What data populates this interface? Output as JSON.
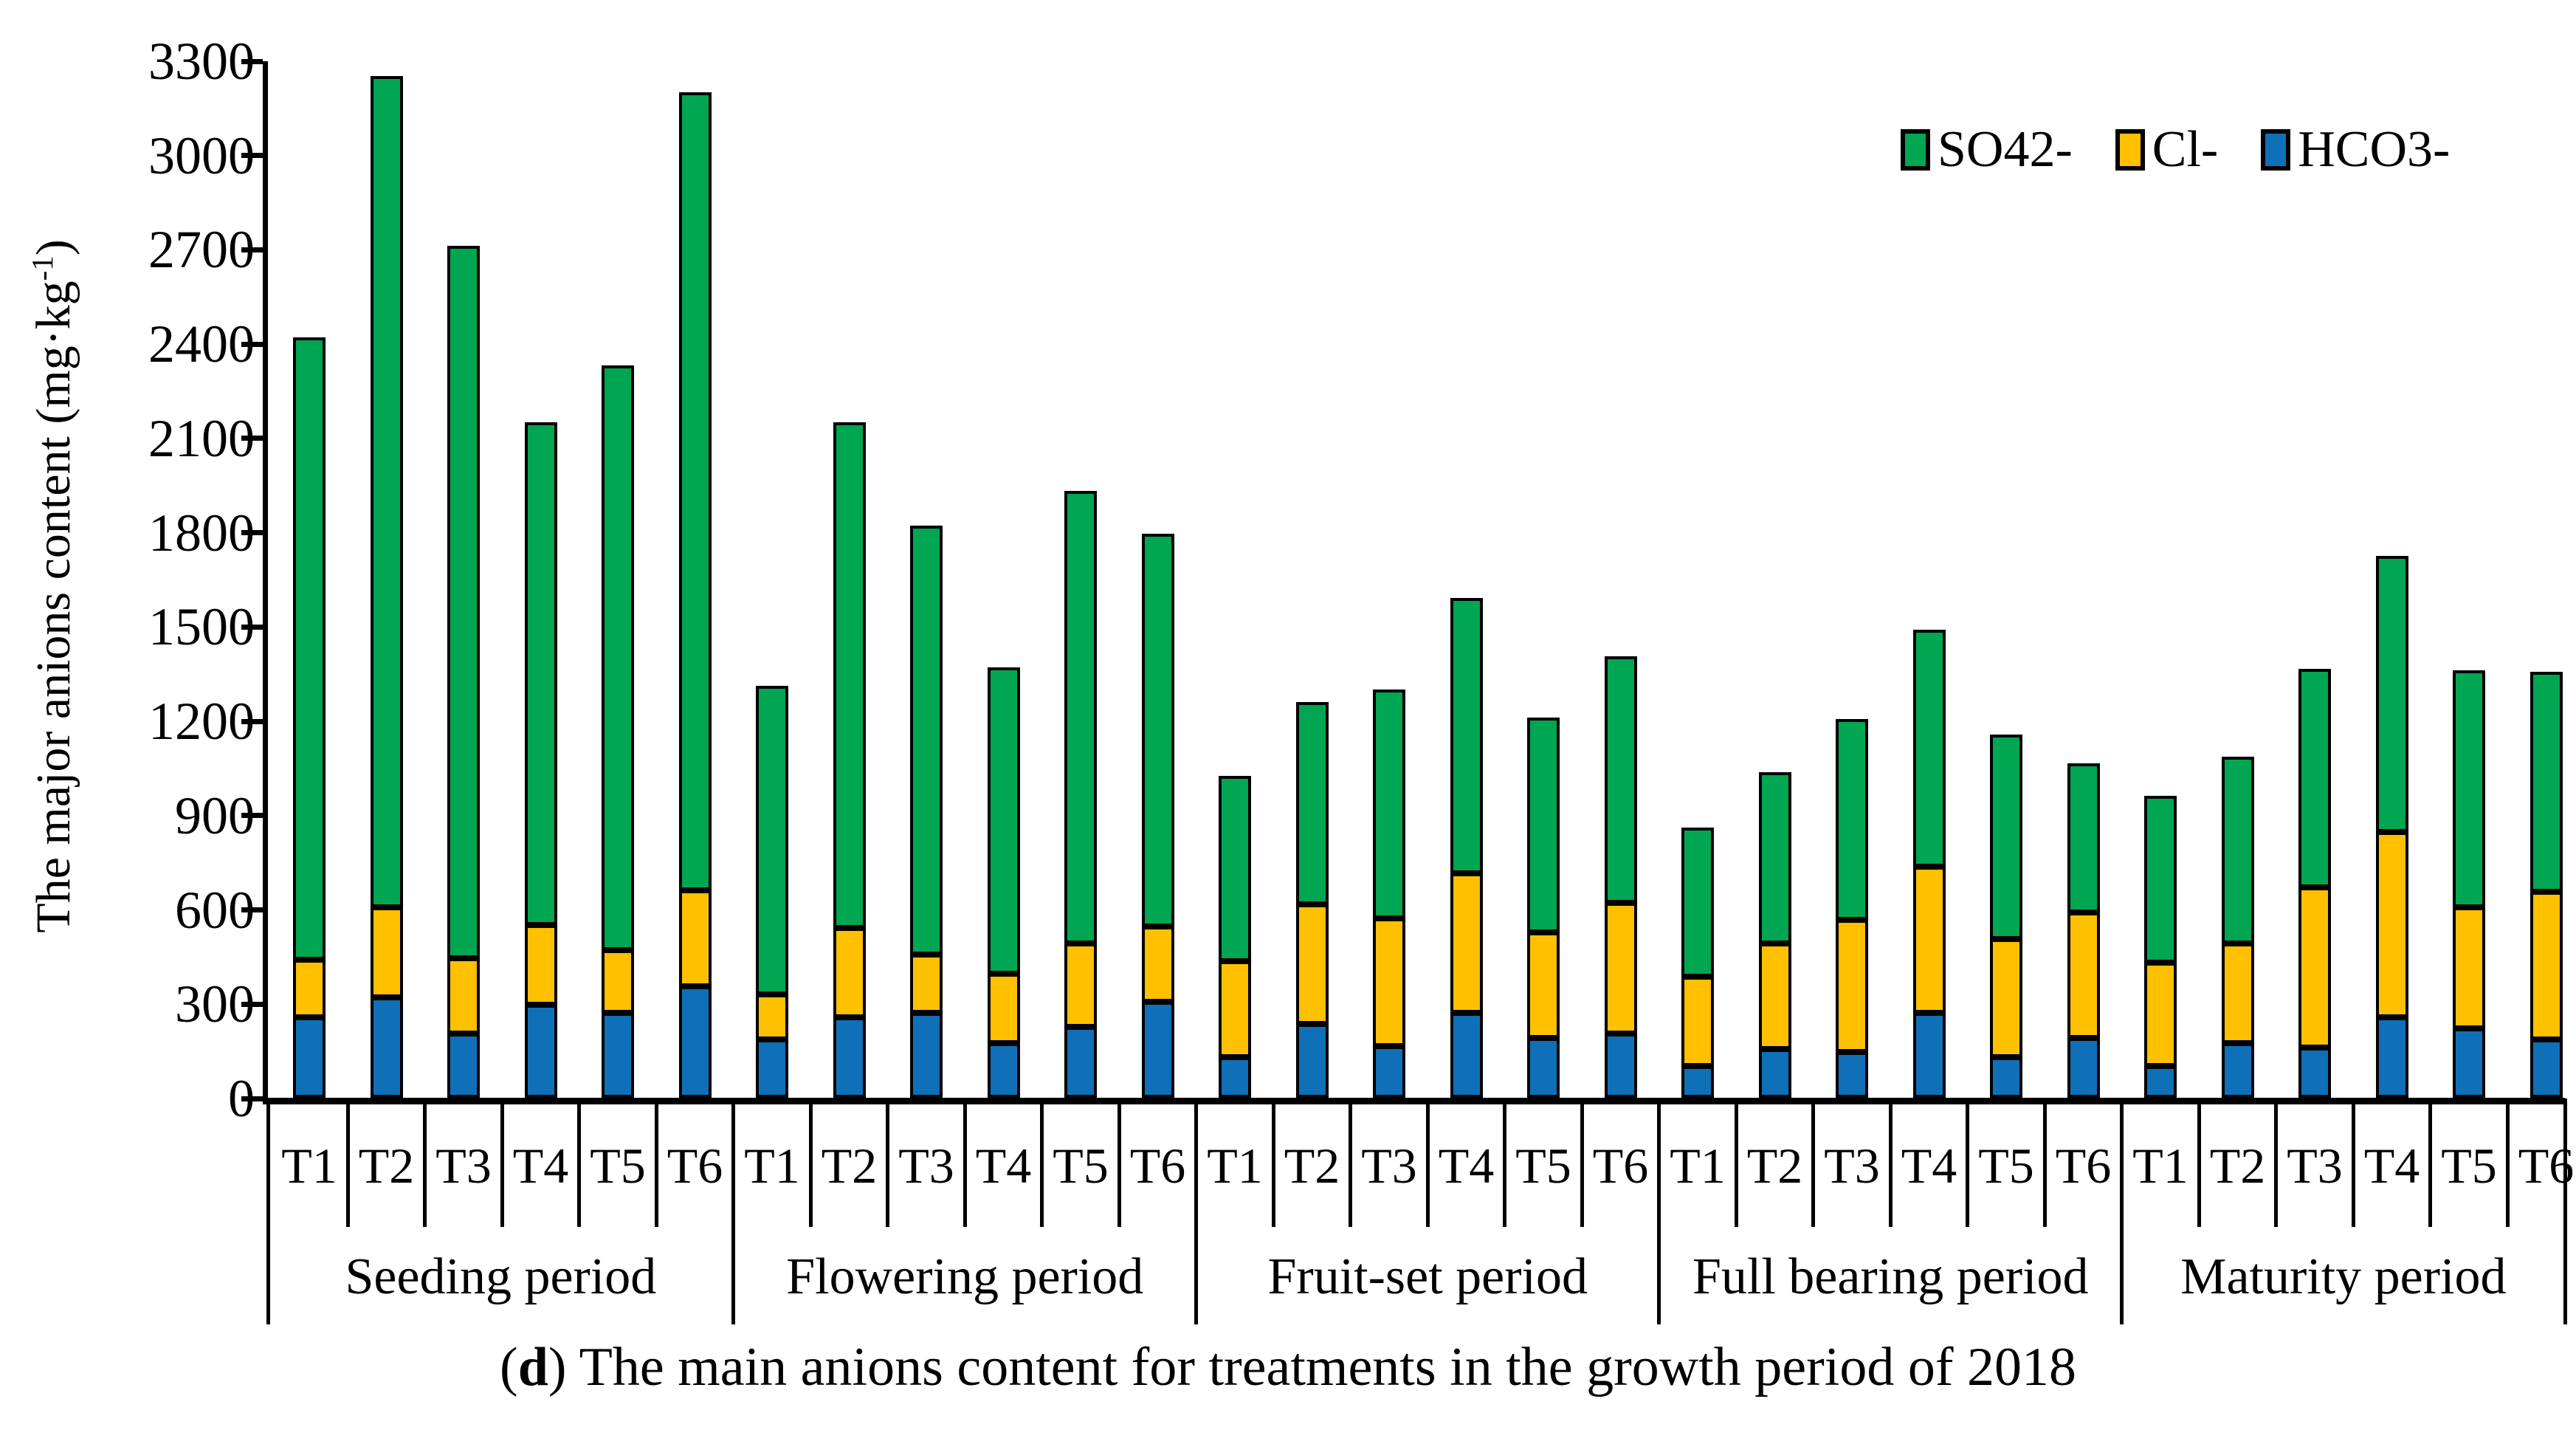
{
  "figure": {
    "y_axis_title_main": "The major anions content (mg·kg",
    "y_axis_title_sup": "-1",
    "y_axis_title_close": ")",
    "caption_open": "(",
    "caption_bold": "d",
    "caption_rest": ") The main anions content for treatments in the growth period of 2018"
  },
  "legend": {
    "position": "top-right",
    "items": [
      {
        "label": "SO42-",
        "color": "#00A651"
      },
      {
        "label": "Cl-",
        "color": "#FFC000"
      },
      {
        "label": "HCO3-",
        "color": "#0F70B7"
      }
    ]
  },
  "chart_data": {
    "type": "bar",
    "stacked": true,
    "title": "",
    "xlabel": "",
    "ylabel": "The major anions content (mg·kg-1)",
    "ylim": [
      0,
      3300
    ],
    "ytick_step": 300,
    "y_ticks": [
      0,
      300,
      600,
      900,
      1200,
      1500,
      1800,
      2100,
      2400,
      2700,
      3000,
      3300
    ],
    "grid": false,
    "treatments": [
      "T1",
      "T2",
      "T3",
      "T4",
      "T5",
      "T6"
    ],
    "series_order_bottom_to_top": [
      "HCO3-",
      "Cl-",
      "SO42-"
    ],
    "series_colors": {
      "HCO3-": "#0F70B7",
      "Cl-": "#FFC000",
      "SO42-": "#00A651"
    },
    "groups": [
      {
        "label": "Seeding period",
        "values": {
          "HCO3-": [
            255,
            320,
            205,
            295,
            270,
            355
          ],
          "Cl-": [
            185,
            285,
            240,
            255,
            200,
            305
          ],
          "SO42-": [
            1980,
            2645,
            2265,
            1600,
            1860,
            2540
          ]
        }
      },
      {
        "label": "Flowering period",
        "values": {
          "HCO3-": [
            185,
            255,
            270,
            175,
            225,
            305
          ],
          "Cl-": [
            145,
            285,
            185,
            220,
            265,
            240
          ],
          "SO42-": [
            980,
            1610,
            1365,
            975,
            1440,
            1250
          ]
        }
      },
      {
        "label": "Fruit-set period",
        "values": {
          "HCO3-": [
            130,
            235,
            165,
            270,
            190,
            205
          ],
          "Cl-": [
            305,
            380,
            405,
            445,
            335,
            415
          ],
          "SO42-": [
            590,
            645,
            730,
            875,
            685,
            785
          ]
        }
      },
      {
        "label": "Full bearing period",
        "values": {
          "HCO3-": [
            100,
            155,
            145,
            270,
            130,
            190
          ],
          "Cl-": [
            285,
            335,
            420,
            465,
            375,
            400
          ],
          "SO42-": [
            475,
            545,
            640,
            755,
            650,
            475
          ]
        }
      },
      {
        "label": "Maturity period",
        "values": {
          "HCO3-": [
            100,
            175,
            160,
            255,
            220,
            185
          ],
          "Cl-": [
            330,
            315,
            510,
            590,
            385,
            470
          ],
          "SO42-": [
            530,
            595,
            695,
            880,
            755,
            700
          ]
        }
      }
    ]
  }
}
